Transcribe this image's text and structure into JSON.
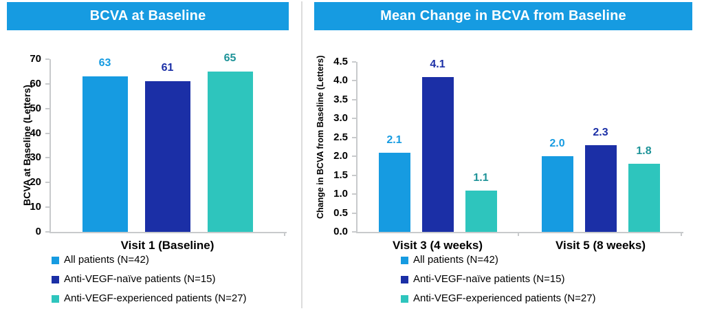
{
  "colors": {
    "header_bg": "#169BE1",
    "header_text": "#FFFFFF",
    "axis_line": "#C8CACC",
    "divider": "#DCDCDC",
    "text": "#000000"
  },
  "chart_data": [
    {
      "type": "bar",
      "title": "BCVA at Baseline",
      "xlabel": "",
      "ylabel": "BCVA at Baseline (Letters)",
      "categories": [
        "Visit 1 (Baseline)"
      ],
      "series": [
        {
          "name": "All patients (N=42)",
          "color": "#169BE1",
          "label_color": "#169BE1",
          "values": [
            63
          ],
          "value_labels": [
            "63"
          ]
        },
        {
          "name": "Anti-VEGF-naïve patients (N=15)",
          "color": "#1B2FA6",
          "label_color": "#1B2FA6",
          "values": [
            61
          ],
          "value_labels": [
            "61"
          ]
        },
        {
          "name": "Anti-VEGF-experienced patients (N=27)",
          "color": "#2EC5BD",
          "label_color": "#1D9398",
          "values": [
            65
          ],
          "value_labels": [
            "65"
          ]
        }
      ],
      "ylim": [
        0,
        70
      ],
      "yticks": [
        "0",
        "10",
        "20",
        "30",
        "40",
        "50",
        "60",
        "70"
      ],
      "grid": false,
      "legend_position": "bottom-left"
    },
    {
      "type": "bar",
      "title": "Mean Change in BCVA from Baseline",
      "xlabel": "",
      "ylabel": "Change in BCVA from Baseline (Letters)",
      "categories": [
        "Visit 3 (4 weeks)",
        "Visit 5 (8 weeks)"
      ],
      "series": [
        {
          "name": "All patients (N=42)",
          "color": "#169BE1",
          "label_color": "#169BE1",
          "values": [
            2.1,
            2.0
          ],
          "value_labels": [
            "2.1",
            "2.0"
          ]
        },
        {
          "name": "Anti-VEGF-naïve patients (N=15)",
          "color": "#1B2FA6",
          "label_color": "#1B2FA6",
          "values": [
            4.1,
            2.3
          ],
          "value_labels": [
            "4.1",
            "2.3"
          ]
        },
        {
          "name": "Anti-VEGF-experienced patients (N=27)",
          "color": "#2EC5BD",
          "label_color": "#1D9398",
          "values": [
            1.1,
            1.8
          ],
          "value_labels": [
            "1.1",
            "1.8"
          ]
        }
      ],
      "ylim": [
        0,
        4.5
      ],
      "yticks": [
        "0.0",
        "0.5",
        "1.0",
        "1.5",
        "2.0",
        "2.5",
        "3.0",
        "3.5",
        "4.0",
        "4.5"
      ],
      "grid": false,
      "legend_position": "bottom-left"
    }
  ]
}
